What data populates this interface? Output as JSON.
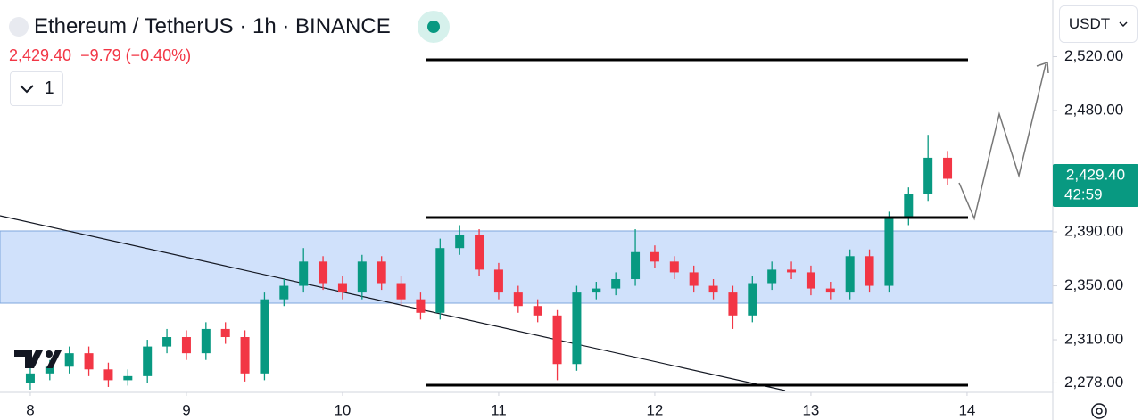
{
  "header": {
    "symbol": "Ethereum / TetherUS · 1h · BINANCE",
    "price": "2,429.40",
    "change": "−9.79 (−0.40%)",
    "indicators_count": "1",
    "currency": "USDT"
  },
  "chart_data": {
    "type": "candlestick",
    "x": [
      8,
      8.125,
      8.25,
      8.375,
      8.5,
      8.625,
      8.75,
      8.875,
      9,
      9.125,
      9.25,
      9.375,
      9.5,
      9.625,
      9.75,
      9.875,
      10,
      10.125,
      10.25,
      10.375,
      10.5,
      10.625,
      10.75,
      10.875,
      11,
      11.125,
      11.25,
      11.375,
      11.5,
      11.625,
      11.75,
      11.875,
      12,
      12.125,
      12.25,
      12.375,
      12.5,
      12.625,
      12.75,
      12.875,
      13,
      13.125,
      13.25,
      13.375,
      13.5,
      13.625,
      13.75,
      13.875
    ],
    "open": [
      2278,
      2285,
      2290,
      2300,
      2288,
      2280,
      2283,
      2305,
      2312,
      2300,
      2318,
      2312,
      2285,
      2340,
      2350,
      2368,
      2352,
      2345,
      2368,
      2352,
      2340,
      2330,
      2378,
      2388,
      2362,
      2345,
      2335,
      2328,
      2292,
      2345,
      2348,
      2355,
      2375,
      2368,
      2360,
      2350,
      2345,
      2328,
      2352,
      2362,
      2360,
      2348,
      2345,
      2372,
      2350,
      2400,
      2418,
      2445
    ],
    "high": [
      2290,
      2295,
      2305,
      2305,
      2293,
      2288,
      2310,
      2318,
      2317,
      2323,
      2323,
      2317,
      2345,
      2355,
      2378,
      2372,
      2357,
      2373,
      2372,
      2357,
      2345,
      2385,
      2395,
      2392,
      2367,
      2350,
      2340,
      2332,
      2350,
      2353,
      2360,
      2392,
      2380,
      2372,
      2365,
      2355,
      2350,
      2357,
      2368,
      2368,
      2365,
      2353,
      2377,
      2377,
      2405,
      2423,
      2462,
      2450
    ],
    "low": [
      2273,
      2280,
      2285,
      2283,
      2275,
      2276,
      2278,
      2300,
      2295,
      2295,
      2307,
      2279,
      2280,
      2335,
      2345,
      2347,
      2340,
      2340,
      2347,
      2335,
      2325,
      2325,
      2373,
      2357,
      2340,
      2330,
      2323,
      2280,
      2287,
      2340,
      2343,
      2350,
      2363,
      2355,
      2345,
      2340,
      2318,
      2323,
      2347,
      2355,
      2343,
      2340,
      2340,
      2345,
      2345,
      2395,
      2413,
      2425
    ],
    "close": [
      2285,
      2290,
      2300,
      2288,
      2280,
      2283,
      2305,
      2312,
      2300,
      2318,
      2312,
      2285,
      2340,
      2350,
      2368,
      2352,
      2345,
      2368,
      2352,
      2340,
      2330,
      2378,
      2388,
      2362,
      2345,
      2335,
      2328,
      2292,
      2345,
      2348,
      2355,
      2375,
      2368,
      2360,
      2350,
      2345,
      2328,
      2352,
      2362,
      2360,
      2348,
      2345,
      2372,
      2350,
      2400,
      2418,
      2445,
      2429.4
    ],
    "up_color": "#089981",
    "down_color": "#f23645",
    "xlim": [
      7.806,
      14.549
    ],
    "xticks": [
      8,
      9,
      10,
      11,
      12,
      13,
      14
    ],
    "ylim": [
      2271,
      2562
    ],
    "yticks": [
      {
        "value": 2278,
        "label": "2,278.00"
      },
      {
        "value": 2310,
        "label": "2,310.00"
      },
      {
        "value": 2350,
        "label": "2,350.00"
      },
      {
        "value": 2390,
        "label": "2,390.00"
      },
      {
        "value": 2480,
        "label": "2,480.00"
      },
      {
        "value": 2520,
        "label": "2,520.00"
      }
    ],
    "last_price": {
      "value": 2429.4,
      "label": "2,429.40"
    },
    "countdown": "42:59"
  }
}
